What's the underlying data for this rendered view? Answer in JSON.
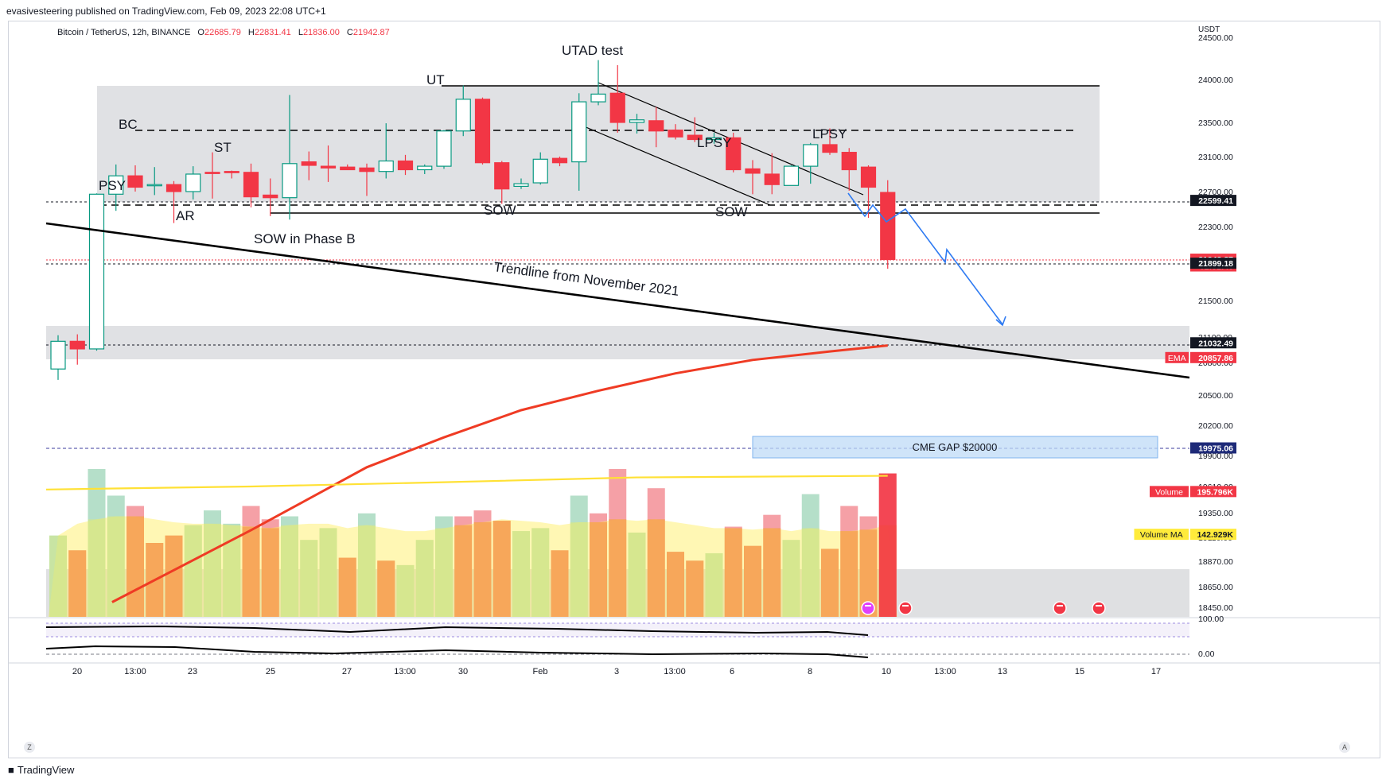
{
  "publish_line": "evasivesteering published on TradingView.com, Feb 09, 2023 22:08 UTC+1",
  "brand": "TradingView",
  "symbol": {
    "name": "Bitcoin / TetherUS, 12h, BINANCE",
    "o_label": "O",
    "o": "22685.79",
    "h_label": "H",
    "h": "22831.41",
    "l_label": "L",
    "l": "21836.00",
    "c_label": "C",
    "c": "21942.87"
  },
  "colors": {
    "up": "#089981",
    "down": "#f23645",
    "ema": "#ef3b24",
    "vol_ma": "#ffe135",
    "projection": "#2f7bf2",
    "zone": "#e3e4e6",
    "axis_text": "#131722"
  },
  "chart_data": {
    "type": "candlestick",
    "price_axis": {
      "unit_label": "USDT",
      "ticks": [
        "24500.00",
        "24000.00",
        "23500.00",
        "23100.00",
        "22700.00",
        "22300.00",
        "21900.00",
        "21500.00",
        "21100.00",
        "20800.00",
        "20500.00",
        "20200.00",
        "19900.00",
        "19610.00",
        "19350.00",
        "19110.00",
        "18870.00",
        "18650.00",
        "18450.00"
      ],
      "badges": [
        {
          "id": "b1",
          "text": "22599.41",
          "style": "black",
          "value": 22599
        },
        {
          "id": "b2",
          "text": "21942.87",
          "style": "red",
          "value": 21943
        },
        {
          "id": "b3",
          "text": "02:51:48",
          "style": "red",
          "value": 21870
        },
        {
          "id": "b4",
          "text": "21899.18",
          "style": "black",
          "value": 21899
        },
        {
          "id": "b5",
          "text": "21032.49",
          "style": "black",
          "value": 21032
        },
        {
          "id": "b6",
          "text": "20857.86",
          "style": "red",
          "value": 20858,
          "label": "EMA"
        },
        {
          "id": "b7",
          "text": "19975.06",
          "style": "navy",
          "value": 19975
        },
        {
          "id": "b8",
          "text": "195.796K",
          "style": "red",
          "value": 19560,
          "label": "Volume"
        },
        {
          "id": "b9",
          "text": "142.929K",
          "style": "yellow",
          "value": 19140,
          "label": "Volume MA"
        }
      ]
    },
    "time_axis": [
      "20",
      "13:00",
      "23",
      "25",
      "27",
      "13:00",
      "30",
      "Feb",
      "3",
      "13:00",
      "6",
      "8",
      "10",
      "13:00",
      "13",
      "15",
      "17"
    ],
    "candles": [
      {
        "o": 20740,
        "h": 21120,
        "l": 20640,
        "c": 21050
      },
      {
        "o": 21050,
        "h": 21130,
        "l": 20780,
        "c": 20960
      },
      {
        "o": 20960,
        "h": 22680,
        "l": 20940,
        "c": 22670
      },
      {
        "o": 22670,
        "h": 23010,
        "l": 22480,
        "c": 22880
      },
      {
        "o": 22880,
        "h": 23000,
        "l": 22700,
        "c": 22750
      },
      {
        "o": 22780,
        "h": 22980,
        "l": 22660,
        "c": 22780
      },
      {
        "o": 22780,
        "h": 22820,
        "l": 22340,
        "c": 22700
      },
      {
        "o": 22700,
        "h": 22990,
        "l": 22610,
        "c": 22900
      },
      {
        "o": 22920,
        "h": 23150,
        "l": 22620,
        "c": 22910
      },
      {
        "o": 22930,
        "h": 22940,
        "l": 22850,
        "c": 22920
      },
      {
        "o": 22920,
        "h": 23020,
        "l": 22520,
        "c": 22640
      },
      {
        "o": 22660,
        "h": 22850,
        "l": 22420,
        "c": 22630
      },
      {
        "o": 22630,
        "h": 23820,
        "l": 22380,
        "c": 23020
      },
      {
        "o": 23040,
        "h": 23160,
        "l": 22830,
        "c": 23000
      },
      {
        "o": 22990,
        "h": 23230,
        "l": 22810,
        "c": 22970
      },
      {
        "o": 22980,
        "h": 23010,
        "l": 22960,
        "c": 22950
      },
      {
        "o": 22970,
        "h": 23020,
        "l": 22650,
        "c": 22930
      },
      {
        "o": 22930,
        "h": 23490,
        "l": 22850,
        "c": 23050
      },
      {
        "o": 23050,
        "h": 23120,
        "l": 22890,
        "c": 22950
      },
      {
        "o": 22950,
        "h": 23010,
        "l": 22900,
        "c": 22990
      },
      {
        "o": 22990,
        "h": 23410,
        "l": 22960,
        "c": 23400
      },
      {
        "o": 23400,
        "h": 23930,
        "l": 23340,
        "c": 23770
      },
      {
        "o": 23770,
        "h": 23790,
        "l": 23010,
        "c": 23030
      },
      {
        "o": 23030,
        "h": 23050,
        "l": 22560,
        "c": 22730
      },
      {
        "o": 22760,
        "h": 22850,
        "l": 22730,
        "c": 22790
      },
      {
        "o": 22800,
        "h": 23150,
        "l": 22780,
        "c": 23070
      },
      {
        "o": 23080,
        "h": 23100,
        "l": 22990,
        "c": 23030
      },
      {
        "o": 23040,
        "h": 23840,
        "l": 22710,
        "c": 23740
      },
      {
        "o": 23740,
        "h": 24230,
        "l": 23700,
        "c": 23830
      },
      {
        "o": 23840,
        "h": 24170,
        "l": 23380,
        "c": 23500
      },
      {
        "o": 23500,
        "h": 23600,
        "l": 23370,
        "c": 23530
      },
      {
        "o": 23520,
        "h": 23680,
        "l": 23210,
        "c": 23400
      },
      {
        "o": 23410,
        "h": 23480,
        "l": 23300,
        "c": 23330
      },
      {
        "o": 23350,
        "h": 23560,
        "l": 23270,
        "c": 23300
      },
      {
        "o": 23300,
        "h": 23380,
        "l": 23250,
        "c": 23320
      },
      {
        "o": 23320,
        "h": 23380,
        "l": 22920,
        "c": 22950
      },
      {
        "o": 22960,
        "h": 23060,
        "l": 22670,
        "c": 22910
      },
      {
        "o": 22900,
        "h": 23140,
        "l": 22670,
        "c": 22780
      },
      {
        "o": 22770,
        "h": 23000,
        "l": 22780,
        "c": 22990
      },
      {
        "o": 22990,
        "h": 23260,
        "l": 22790,
        "c": 23240
      },
      {
        "o": 23240,
        "h": 23430,
        "l": 23120,
        "c": 23150
      },
      {
        "o": 23150,
        "h": 23200,
        "l": 22710,
        "c": 22950
      },
      {
        "o": 22980,
        "h": 23000,
        "l": 22400,
        "c": 22750
      },
      {
        "o": 22690,
        "h": 22830,
        "l": 21840,
        "c": 21940
      }
    ],
    "volume": [
      {
        "v": 0.55,
        "dir": "up"
      },
      {
        "v": 0.45,
        "dir": "down"
      },
      {
        "v": 1.0,
        "dir": "up"
      },
      {
        "v": 0.82,
        "dir": "up"
      },
      {
        "v": 0.75,
        "dir": "down"
      },
      {
        "v": 0.5,
        "dir": "down"
      },
      {
        "v": 0.55,
        "dir": "down"
      },
      {
        "v": 0.62,
        "dir": "up"
      },
      {
        "v": 0.72,
        "dir": "up"
      },
      {
        "v": 0.63,
        "dir": "up"
      },
      {
        "v": 0.75,
        "dir": "down"
      },
      {
        "v": 0.66,
        "dir": "down"
      },
      {
        "v": 0.68,
        "dir": "up"
      },
      {
        "v": 0.52,
        "dir": "up"
      },
      {
        "v": 0.6,
        "dir": "up"
      },
      {
        "v": 0.4,
        "dir": "down"
      },
      {
        "v": 0.7,
        "dir": "up"
      },
      {
        "v": 0.38,
        "dir": "down"
      },
      {
        "v": 0.35,
        "dir": "up"
      },
      {
        "v": 0.52,
        "dir": "up"
      },
      {
        "v": 0.68,
        "dir": "up"
      },
      {
        "v": 0.68,
        "dir": "down"
      },
      {
        "v": 0.72,
        "dir": "down"
      },
      {
        "v": 0.65,
        "dir": "down"
      },
      {
        "v": 0.58,
        "dir": "up"
      },
      {
        "v": 0.6,
        "dir": "up"
      },
      {
        "v": 0.45,
        "dir": "down"
      },
      {
        "v": 0.82,
        "dir": "up"
      },
      {
        "v": 0.7,
        "dir": "down"
      },
      {
        "v": 1.0,
        "dir": "down"
      },
      {
        "v": 0.57,
        "dir": "up"
      },
      {
        "v": 0.87,
        "dir": "down"
      },
      {
        "v": 0.44,
        "dir": "down"
      },
      {
        "v": 0.38,
        "dir": "down"
      },
      {
        "v": 0.43,
        "dir": "up"
      },
      {
        "v": 0.61,
        "dir": "down"
      },
      {
        "v": 0.48,
        "dir": "down"
      },
      {
        "v": 0.69,
        "dir": "down"
      },
      {
        "v": 0.52,
        "dir": "up"
      },
      {
        "v": 0.83,
        "dir": "up"
      },
      {
        "v": 0.46,
        "dir": "down"
      },
      {
        "v": 0.75,
        "dir": "down"
      },
      {
        "v": 0.68,
        "dir": "down"
      },
      {
        "v": 0.97,
        "dir": "down"
      }
    ],
    "ema_points": [
      [
        2.8,
        18500
      ],
      [
        10,
        19180
      ],
      [
        16,
        19790
      ],
      [
        20,
        20080
      ],
      [
        24,
        20350
      ],
      [
        28,
        20540
      ],
      [
        32,
        20700
      ],
      [
        36,
        20830
      ],
      [
        40,
        20930
      ],
      [
        43,
        21000
      ]
    ],
    "vol_ma_points": [
      [
        0,
        19580
      ],
      [
        10,
        19610
      ],
      [
        20,
        19650
      ],
      [
        30,
        19695
      ],
      [
        43,
        19710
      ]
    ],
    "annotations": [
      {
        "id": "psy",
        "text": "PSY"
      },
      {
        "id": "bc",
        "text": "BC"
      },
      {
        "id": "ar",
        "text": "AR"
      },
      {
        "id": "st",
        "text": "ST"
      },
      {
        "id": "sowb",
        "text": "SOW in Phase B"
      },
      {
        "id": "ut",
        "text": "UT"
      },
      {
        "id": "sow1",
        "text": "SOW"
      },
      {
        "id": "utad",
        "text": "UTAD test"
      },
      {
        "id": "lpsy1",
        "text": "LPSY"
      },
      {
        "id": "sow2",
        "text": "SOW"
      },
      {
        "id": "lpsy2",
        "text": "LPSY"
      },
      {
        "id": "trend",
        "text": "Trendline from November 2021"
      },
      {
        "id": "cme",
        "text": "CME GAP $20000"
      }
    ],
    "oscillator_ticks": [
      "100.00",
      "0.00"
    ],
    "zoom_buttons": {
      "left": "Z",
      "right": "A"
    }
  }
}
